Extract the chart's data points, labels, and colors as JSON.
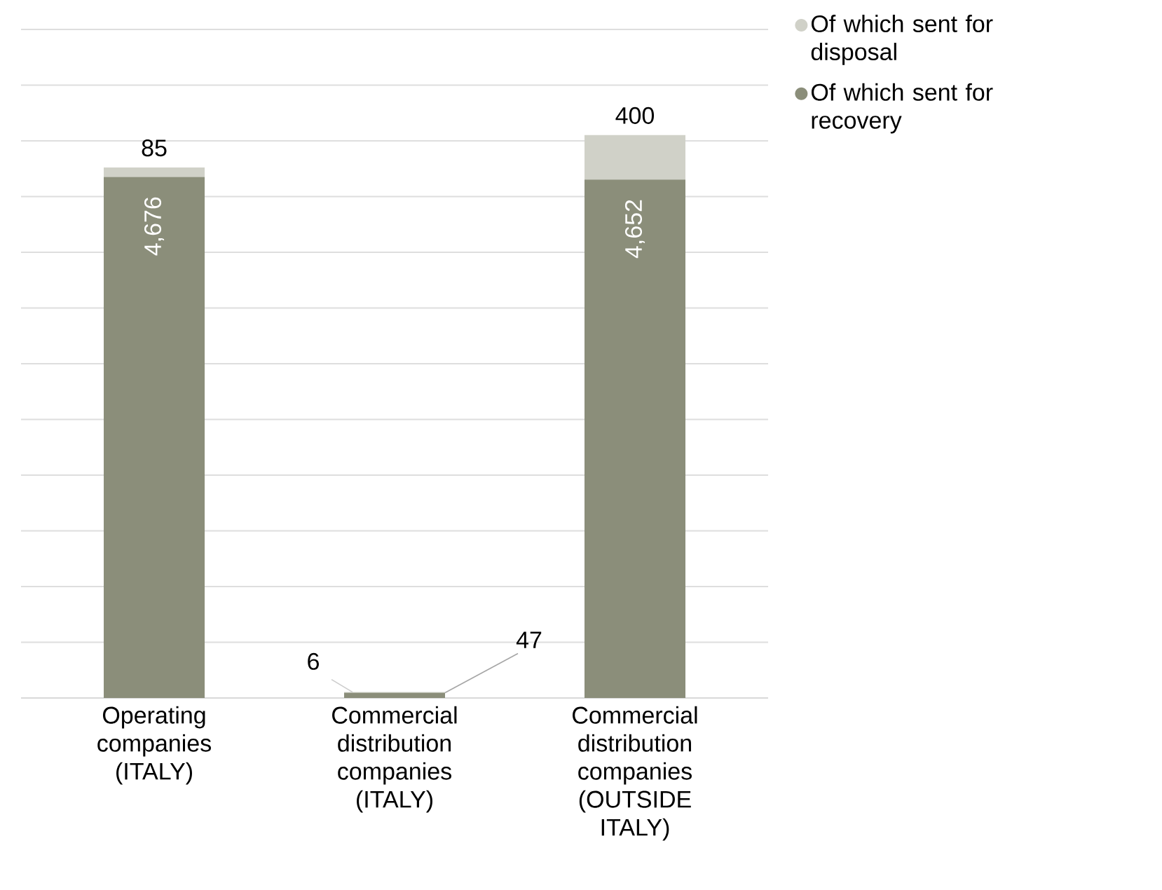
{
  "chart_data": {
    "type": "bar",
    "stacked": true,
    "categories": [
      "Operating companies (ITALY)",
      "Commercial distribution companies (ITALY)",
      "Commercial distribution companies (OUTSIDE ITALY)"
    ],
    "series": [
      {
        "name": "Of which sent for recovery",
        "color": "#8b8e7a",
        "values": [
          4676,
          47,
          4652
        ],
        "value_labels": [
          "4,676",
          "47",
          "4,652"
        ]
      },
      {
        "name": "Of which sent for disposal",
        "color": "#d0d1c8",
        "values": [
          85,
          6,
          400
        ],
        "value_labels": [
          "85",
          "6",
          "400"
        ]
      }
    ],
    "tick_labels": "x",
    "grid": "y",
    "legend": "top right"
  }
}
